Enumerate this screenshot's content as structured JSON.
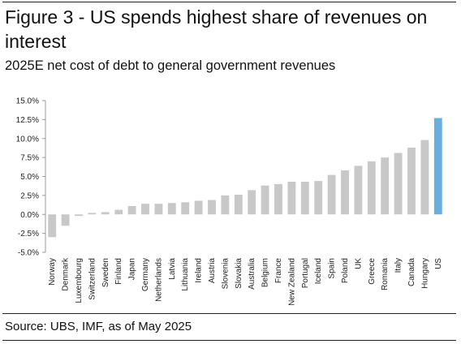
{
  "title": "Figure 3 - US spends highest share of revenues on interest",
  "subtitle": "2025E net cost of debt to general government revenues",
  "source": "Source: UBS, IMF, as of May 2025",
  "colors": {
    "default_bar": "#c8c8c8",
    "highlight_bar": "#6aaedc",
    "axis": "#999999"
  },
  "chart_data": {
    "type": "bar",
    "title": "2025E net cost of debt to general government revenues",
    "xlabel": "",
    "ylabel": "",
    "ylim": [
      -5.0,
      15.0
    ],
    "y_ticks": [
      15.0,
      12.5,
      10.0,
      7.5,
      5.0,
      2.5,
      0.0,
      -2.5,
      -5.0
    ],
    "y_tick_labels": [
      "15.0%",
      "12.5%",
      "10.0%",
      "7.5%",
      "5.0%",
      "2.5%",
      "0.0%",
      "-2.5%",
      "-5.0%"
    ],
    "grid": false,
    "highlight": "US",
    "categories": [
      "Norway",
      "Denmark",
      "Luxembourg",
      "Switzerland",
      "Sweden",
      "Finland",
      "Japan",
      "Germany",
      "Netherlands",
      "Latvia",
      "Lithuania",
      "Ireland",
      "Austria",
      "Slovenia",
      "Slovakia",
      "Australia",
      "Belgium",
      "France",
      "New Zealand",
      "Portugal",
      "Iceland",
      "Spain",
      "Poland",
      "UK",
      "Greece",
      "Romania",
      "Italy",
      "Canada",
      "Hungary",
      "US"
    ],
    "values": [
      -3.0,
      -1.5,
      -0.2,
      0.2,
      0.3,
      0.6,
      1.1,
      1.4,
      1.4,
      1.5,
      1.6,
      1.8,
      1.9,
      2.5,
      2.6,
      3.2,
      3.8,
      4.0,
      4.3,
      4.3,
      4.4,
      5.2,
      5.8,
      6.4,
      7.0,
      7.5,
      8.1,
      8.8,
      9.8,
      12.7
    ]
  }
}
